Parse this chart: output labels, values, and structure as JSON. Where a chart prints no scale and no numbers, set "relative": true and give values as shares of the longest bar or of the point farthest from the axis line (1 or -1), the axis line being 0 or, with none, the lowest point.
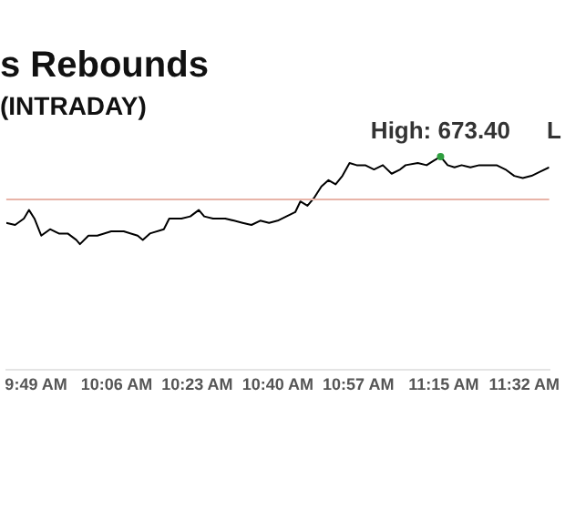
{
  "chart_data": {
    "type": "line",
    "title": "s Rebounds",
    "subtitle": "(INTRADAY)",
    "relative": true,
    "legend": false,
    "grid": false,
    "marker": "none",
    "line_style": "solid",
    "x": [
      9.712,
      9.743,
      9.774,
      9.792,
      9.811,
      9.835,
      9.866,
      9.897,
      9.928,
      9.958,
      9.971,
      10.001,
      10.032,
      10.081,
      10.125,
      10.174,
      10.192,
      10.217,
      10.266,
      10.285,
      10.328,
      10.359,
      10.389,
      10.408,
      10.439,
      10.482,
      10.513,
      10.543,
      10.574,
      10.605,
      10.636,
      10.666,
      10.697,
      10.728,
      10.746,
      10.771,
      10.796,
      10.82,
      10.845,
      10.87,
      10.894,
      10.919,
      10.944,
      10.974,
      11.005,
      11.036,
      11.067,
      11.097,
      11.116,
      11.159,
      11.19,
      11.214,
      11.239,
      11.264,
      11.288,
      11.313,
      11.344,
      11.375,
      11.405,
      11.436,
      11.467,
      11.498,
      11.528,
      11.559,
      11.59,
      11.621
    ],
    "series": [
      {
        "color": "#000000",
        "values": [
          0.69,
          0.68,
          0.71,
          0.75,
          0.71,
          0.63,
          0.66,
          0.64,
          0.64,
          0.61,
          0.59,
          0.63,
          0.63,
          0.65,
          0.65,
          0.63,
          0.61,
          0.64,
          0.66,
          0.71,
          0.71,
          0.72,
          0.75,
          0.72,
          0.71,
          0.71,
          0.7,
          0.69,
          0.68,
          0.7,
          0.69,
          0.7,
          0.72,
          0.74,
          0.79,
          0.77,
          0.81,
          0.86,
          0.89,
          0.87,
          0.91,
          0.97,
          0.96,
          0.96,
          0.94,
          0.96,
          0.92,
          0.94,
          0.96,
          0.97,
          0.96,
          0.98,
          1,
          0.96,
          0.95,
          0.96,
          0.95,
          0.96,
          0.96,
          0.96,
          0.94,
          0.91,
          0.9,
          0.91,
          0.93,
          0.95
        ]
      }
    ],
    "xlim": [
      9.712,
      11.621
    ],
    "xticks": [
      {
        "value": 9.8167,
        "label": "9:49 AM"
      },
      {
        "value": 10.1,
        "label": "10:06 AM"
      },
      {
        "value": 10.3833,
        "label": "10:23 AM"
      },
      {
        "value": 10.6667,
        "label": "10:40 AM"
      },
      {
        "value": 10.95,
        "label": "10:57 AM"
      },
      {
        "value": 11.25,
        "label": "11:15 AM"
      },
      {
        "value": 11.5333,
        "label": "11:32 AM"
      }
    ],
    "ref_lines": [
      {
        "axis": "y",
        "value": 0.8,
        "color": "#e8b4a8"
      }
    ],
    "annotations": [
      {
        "text": "High: 673.40",
        "x": 11.239,
        "y": 1
      },
      "L"
    ]
  }
}
